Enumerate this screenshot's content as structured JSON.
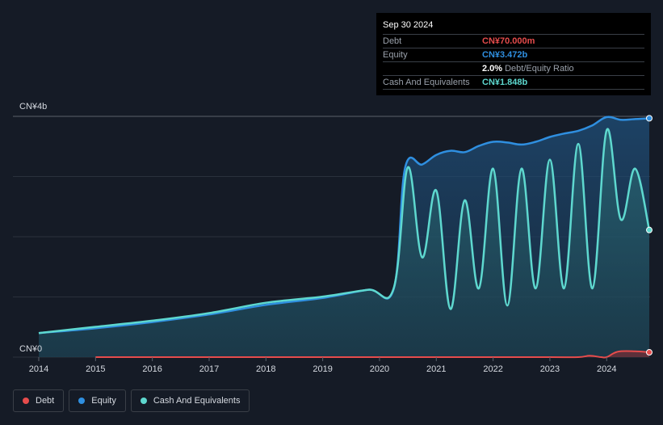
{
  "tooltip": {
    "date": "Sep 30 2024",
    "rows": [
      {
        "label": "Debt",
        "value": "CN¥70.000m",
        "color": "#e64c4c"
      },
      {
        "label": "Equity",
        "value": "CN¥3.472b",
        "color": "#2f8fe0"
      },
      {
        "label": "",
        "value": "2.0%",
        "extra": "Debt/Equity Ratio",
        "color": "#ffffff"
      },
      {
        "label": "Cash And Equivalents",
        "value": "CN¥1.848b",
        "color": "#5ed8cf"
      }
    ]
  },
  "legend": [
    {
      "label": "Debt",
      "color": "#e64c4c"
    },
    {
      "label": "Equity",
      "color": "#2f8fe0"
    },
    {
      "label": "Cash And Equivalents",
      "color": "#5ed8cf"
    }
  ],
  "chart_data": {
    "type": "area",
    "title": "",
    "xlabel": "",
    "ylabel": "",
    "y_unit_label_top": "CN¥4b",
    "y_unit_label_bottom": "CN¥0",
    "ylim": [
      0,
      3.5
    ],
    "xlim": [
      2014.0,
      2024.75
    ],
    "x_ticks": [
      "2014",
      "2015",
      "2016",
      "2017",
      "2018",
      "2019",
      "2020",
      "2021",
      "2022",
      "2023",
      "2024"
    ],
    "grid": true,
    "legend_position": "bottom-left",
    "series": [
      {
        "name": "Equity",
        "color": "#2f8fe0",
        "x": [
          2014.0,
          2015.0,
          2016.0,
          2017.0,
          2018.0,
          2019.0,
          2019.8,
          2020.25,
          2020.45,
          2020.75,
          2021.0,
          2021.25,
          2021.5,
          2021.75,
          2022.0,
          2022.25,
          2022.5,
          2022.75,
          2023.0,
          2023.25,
          2023.5,
          2023.75,
          2024.0,
          2024.25,
          2024.5,
          2024.75
        ],
        "y": [
          0.35,
          0.42,
          0.51,
          0.62,
          0.76,
          0.86,
          0.98,
          0.99,
          2.75,
          2.8,
          2.94,
          3.0,
          2.98,
          3.07,
          3.13,
          3.12,
          3.09,
          3.13,
          3.2,
          3.25,
          3.29,
          3.37,
          3.49,
          3.45,
          3.46,
          3.472
        ]
      },
      {
        "name": "Cash And Equivalents",
        "color": "#5ed8cf",
        "x": [
          2014.0,
          2015.0,
          2016.0,
          2017.0,
          2018.0,
          2019.0,
          2019.8,
          2020.25,
          2020.5,
          2020.75,
          2021.0,
          2021.25,
          2021.5,
          2021.75,
          2022.0,
          2022.25,
          2022.5,
          2022.75,
          2023.0,
          2023.25,
          2023.5,
          2023.75,
          2024.0,
          2024.25,
          2024.5,
          2024.75
        ],
        "y": [
          0.35,
          0.44,
          0.53,
          0.64,
          0.79,
          0.88,
          0.98,
          1.0,
          2.76,
          1.45,
          2.42,
          0.7,
          2.28,
          1.0,
          2.74,
          0.75,
          2.74,
          1.0,
          2.87,
          1.0,
          3.1,
          1.0,
          3.3,
          2.0,
          2.74,
          1.848
        ]
      },
      {
        "name": "Debt",
        "color": "#e64c4c",
        "x": [
          2015.0,
          2016.0,
          2017.0,
          2018.0,
          2019.0,
          2020.0,
          2021.0,
          2022.0,
          2023.0,
          2023.5,
          2023.7,
          2023.9,
          2024.0,
          2024.2,
          2024.5,
          2024.75
        ],
        "y": [
          0.0,
          0.0,
          0.0,
          0.0,
          0.0,
          0.0,
          0.0,
          0.0,
          0.0,
          0.0,
          0.02,
          0.0,
          0.0,
          0.08,
          0.085,
          0.07
        ]
      }
    ]
  }
}
